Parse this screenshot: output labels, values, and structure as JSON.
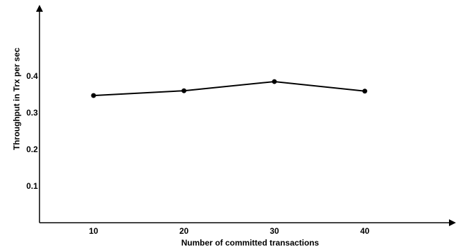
{
  "chart_data": {
    "type": "line",
    "title": "",
    "xlabel": "Number of committed transactions",
    "ylabel": "Throughput in Trx per sec",
    "x": [
      10,
      20,
      30,
      40
    ],
    "series": [
      {
        "values": [
          0.347,
          0.36,
          0.385,
          0.359
        ]
      }
    ],
    "x_ticks": [
      10,
      20,
      30,
      40
    ],
    "y_ticks": [
      0.1,
      0.2,
      0.3,
      0.4
    ],
    "xlim": [
      0,
      50
    ],
    "ylim": [
      0,
      0.6
    ],
    "grid": false,
    "legend": "none",
    "colors": {
      "line": "#000000",
      "axis": "#000000"
    }
  }
}
